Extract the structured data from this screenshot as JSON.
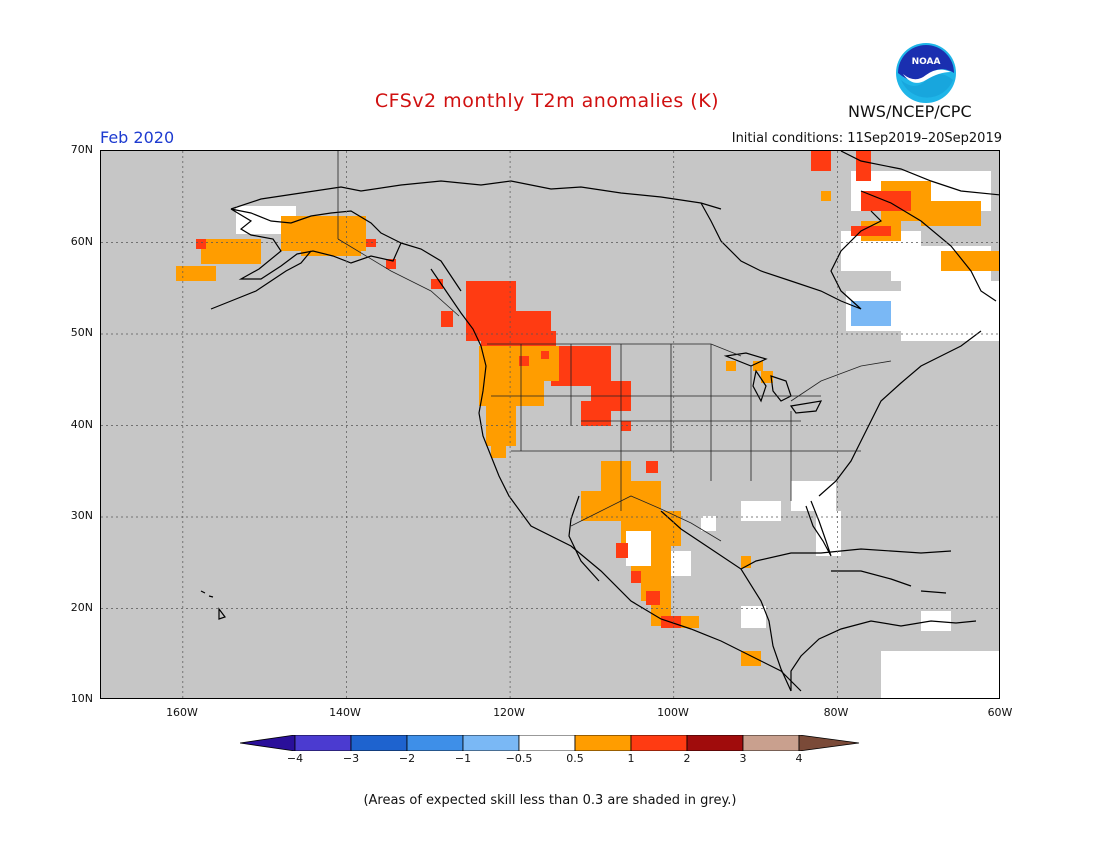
{
  "header": {
    "title": "CFSv2 monthly T2m anomalies (K)",
    "agency": "NWS/NCEP/CPC",
    "logo_text": "NOAA",
    "month": "Feb 2020",
    "initial_conditions": "Initial conditions: 11Sep2019–20Sep2019"
  },
  "map": {
    "lat_range": [
      10,
      70
    ],
    "lon_range": [
      -170,
      -60
    ],
    "lat_labels": [
      "70N",
      "60N",
      "50N",
      "40N",
      "30N",
      "20N",
      "10N"
    ],
    "lon_labels": [
      "160W",
      "140W",
      "120W",
      "100W",
      "80W",
      "60W"
    ],
    "background_color": "#c6c6c6",
    "grid": "dotted"
  },
  "colorbar": {
    "ticks": [
      "−4",
      "−3",
      "−2",
      "−1",
      "−0.5",
      "0.5",
      "1",
      "2",
      "3",
      "4"
    ],
    "colors": [
      "#2a0f9a",
      "#4b3bd0",
      "#1e63cf",
      "#3e8fe8",
      "#7ab8f5",
      "#ffffff",
      "#ff9d00",
      "#ff3b12",
      "#a00c0c",
      "#c9a08e",
      "#7a4a38"
    ]
  },
  "footnote": "(Areas of expected skill less than 0.3 are shaded in grey.)"
}
